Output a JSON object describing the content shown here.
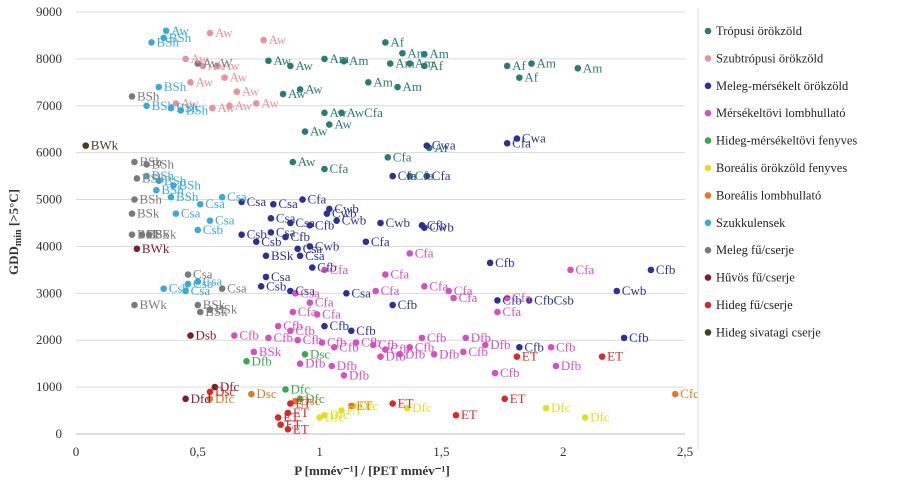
{
  "chart_data": {
    "type": "scatter",
    "xlabel": "P [mmév⁻¹] / [PET mmév⁻¹]",
    "ylabel_main": "GDD",
    "ylabel_sub": "min",
    "ylabel_rest": " [>5°C]",
    "xlim": [
      0,
      2.5
    ],
    "ylim": [
      0,
      9000
    ],
    "xticks": [
      0,
      0.5,
      1,
      1.5,
      2,
      2.5
    ],
    "xtick_labels": [
      "0",
      "0,5",
      "1",
      "1,5",
      "2",
      "2,5"
    ],
    "yticks": [
      0,
      1000,
      2000,
      3000,
      4000,
      5000,
      6000,
      7000,
      8000,
      9000
    ],
    "ytick_labels": [
      "0",
      "1000",
      "2000",
      "3000",
      "4000",
      "5000",
      "6000",
      "7000",
      "8000",
      "9000"
    ],
    "legend_position": "right",
    "series": [
      {
        "name": "Trópusi örökzöld",
        "color": "#2a7b76",
        "points": [
          [
            1.27,
            8350,
            "Af"
          ],
          [
            1.34,
            8120,
            "Am"
          ],
          [
            1.43,
            8100,
            "Am"
          ],
          [
            1.43,
            7850,
            "Af"
          ],
          [
            1.37,
            7900,
            "Am"
          ],
          [
            1.02,
            8000,
            "Am"
          ],
          [
            1.1,
            7950,
            "Am"
          ],
          [
            1.29,
            7900,
            "Am"
          ],
          [
            1.2,
            7500,
            "Am"
          ],
          [
            1.32,
            7400,
            "Am"
          ],
          [
            0.88,
            7850,
            "Aw"
          ],
          [
            0.79,
            7960,
            "Aw"
          ],
          [
            0.92,
            7350,
            "Aw"
          ],
          [
            0.85,
            7250,
            "Aw"
          ],
          [
            1.02,
            6850,
            "Aw"
          ],
          [
            1.09,
            6850,
            "AwCfa"
          ],
          [
            1.04,
            6600,
            "Aw"
          ],
          [
            0.94,
            6450,
            "Aw"
          ],
          [
            1.28,
            5900,
            "Cfa"
          ],
          [
            1.45,
            6100,
            "Af"
          ],
          [
            1.37,
            5500,
            "Cfa"
          ],
          [
            0.89,
            5800,
            "Aw"
          ],
          [
            1.02,
            5650,
            "Cfa"
          ],
          [
            1.77,
            7850,
            "Af"
          ],
          [
            1.82,
            7600,
            "Af"
          ],
          [
            1.87,
            7900,
            "Am"
          ],
          [
            2.06,
            7800,
            "Am"
          ]
        ]
      },
      {
        "name": "Szubtrópusi örökzöld",
        "color": "#e8929a",
        "points": [
          [
            0.55,
            8550,
            "Aw"
          ],
          [
            0.77,
            8400,
            "Aw"
          ],
          [
            0.45,
            8000,
            "Aw"
          ],
          [
            0.52,
            7850,
            "Aw"
          ],
          [
            0.58,
            7850,
            "Aw"
          ],
          [
            0.61,
            7600,
            "Aw"
          ],
          [
            0.66,
            7300,
            "Aw"
          ],
          [
            0.47,
            7500,
            "Aw"
          ],
          [
            0.41,
            7050,
            "Aw"
          ],
          [
            0.56,
            6950,
            "Aw"
          ],
          [
            0.63,
            7000,
            "Aw"
          ],
          [
            0.74,
            7050,
            "Aw"
          ]
        ]
      },
      {
        "name": "Meleg-mérsékelt örökzöld",
        "color": "#2b3293",
        "points": [
          [
            1.44,
            6150,
            "Cwa"
          ],
          [
            1.81,
            6300,
            "Cwa"
          ],
          [
            1.77,
            6200,
            "Cfa"
          ],
          [
            1.3,
            5500,
            "Cfa"
          ],
          [
            1.44,
            5500,
            "Cfa"
          ],
          [
            0.93,
            5000,
            "Cfa"
          ],
          [
            1.04,
            4800,
            "Cwb"
          ],
          [
            1.03,
            4700,
            "Cwb"
          ],
          [
            0.68,
            4950,
            "Csa"
          ],
          [
            0.81,
            4900,
            "Csa"
          ],
          [
            0.8,
            4600,
            "Csa"
          ],
          [
            0.88,
            4500,
            "Csa"
          ],
          [
            0.96,
            4450,
            "Cfb"
          ],
          [
            1.07,
            4550,
            "Cwb"
          ],
          [
            1.25,
            4500,
            "Cwb"
          ],
          [
            1.42,
            4450,
            "Cfb"
          ],
          [
            1.43,
            4400,
            "Cwb"
          ],
          [
            0.8,
            4300,
            "Csa"
          ],
          [
            0.74,
            4100,
            "Csb"
          ],
          [
            0.68,
            4250,
            "Csb"
          ],
          [
            0.86,
            4200,
            "Cfb"
          ],
          [
            0.96,
            4000,
            "Cwb"
          ],
          [
            0.91,
            3950,
            "Csa"
          ],
          [
            0.92,
            3800,
            "Csa"
          ],
          [
            0.97,
            3550,
            "Cfb"
          ],
          [
            1.19,
            4100,
            "Cfa"
          ],
          [
            0.78,
            3350,
            "Csa"
          ],
          [
            0.76,
            3150,
            "Csb"
          ],
          [
            0.88,
            3050,
            "Csa"
          ],
          [
            1.11,
            3000,
            "Csa"
          ],
          [
            1.3,
            2750,
            "Cfb"
          ],
          [
            1.7,
            3650,
            "Cfb"
          ],
          [
            1.73,
            2850,
            "Cfb"
          ],
          [
            1.86,
            2850,
            "CfbCsb"
          ],
          [
            2.22,
            3050,
            "Cwb"
          ],
          [
            2.36,
            3500,
            "Cfb"
          ],
          [
            2.25,
            2050,
            "Cfb"
          ],
          [
            1.82,
            1850,
            "Cfb"
          ],
          [
            1.02,
            2300,
            "Cfb"
          ],
          [
            1.13,
            2200,
            "Cfb"
          ],
          [
            0.78,
            3800,
            "BSk"
          ]
        ]
      },
      {
        "name": "Mérsékeltövi lombhullató",
        "color": "#d44fbf",
        "points": [
          [
            1.37,
            3850,
            "Cfa"
          ],
          [
            1.27,
            3400,
            "Cfa"
          ],
          [
            1.23,
            3050,
            "Cfa"
          ],
          [
            1.43,
            3150,
            "Cfa"
          ],
          [
            1.53,
            3050,
            "Cfa"
          ],
          [
            1.55,
            2900,
            "Cfa"
          ],
          [
            1.77,
            2900,
            "Cfa"
          ],
          [
            1.73,
            2600,
            "Cfa"
          ],
          [
            2.03,
            3500,
            "Cfa"
          ],
          [
            1.02,
            3500,
            "Cfa"
          ],
          [
            0.9,
            3000,
            "Csa"
          ],
          [
            0.96,
            2800,
            "Cfa"
          ],
          [
            0.89,
            2600,
            "Cfa"
          ],
          [
            0.99,
            2550,
            "Cfa"
          ],
          [
            0.83,
            2300,
            "Cfb"
          ],
          [
            0.88,
            2200,
            "Cfb"
          ],
          [
            0.65,
            2100,
            "Cfb"
          ],
          [
            0.79,
            2050,
            "Cfb"
          ],
          [
            0.91,
            2000,
            "Cfb"
          ],
          [
            1.01,
            1950,
            "Cfb"
          ],
          [
            1.06,
            1850,
            "Cfb"
          ],
          [
            1.15,
            1950,
            "Cfb"
          ],
          [
            1.22,
            1900,
            "Cfb"
          ],
          [
            1.27,
            1800,
            "Cfb"
          ],
          [
            1.37,
            1850,
            "Cfb"
          ],
          [
            1.42,
            2050,
            "Cfb"
          ],
          [
            1.6,
            2050,
            "Dfb"
          ],
          [
            1.68,
            1900,
            "Dfb"
          ],
          [
            1.59,
            1750,
            "Cfb"
          ],
          [
            1.95,
            1850,
            "Cfb"
          ],
          [
            1.97,
            1450,
            "Dfb"
          ],
          [
            1.72,
            1300,
            "Cfb"
          ],
          [
            0.92,
            1500,
            "Dfb"
          ],
          [
            1.05,
            1450,
            "Dfb"
          ],
          [
            1.1,
            1250,
            "Dfb"
          ],
          [
            1.25,
            1650,
            "Dfb"
          ],
          [
            1.33,
            1700,
            "Dfb"
          ],
          [
            1.47,
            1700,
            "Dfb"
          ],
          [
            0.73,
            1750,
            "BSk"
          ]
        ]
      },
      {
        "name": "Hideg-mérsékeltövi fenyves",
        "color": "#3aa84a",
        "points": [
          [
            0.7,
            1550,
            "Dfb"
          ],
          [
            0.94,
            1700,
            "Dsc"
          ],
          [
            0.86,
            950,
            "Dfc"
          ],
          [
            0.92,
            750,
            "Dfc"
          ]
        ]
      },
      {
        "name": "Boreális örökzöld fenyves",
        "color": "#e0e020",
        "points": [
          [
            1.14,
            600,
            "Dfc"
          ],
          [
            1.02,
            400,
            "Dfc"
          ],
          [
            1.09,
            500,
            "ET"
          ],
          [
            1.36,
            550,
            "Dfc"
          ],
          [
            1.93,
            550,
            "Dfc"
          ],
          [
            2.09,
            350,
            "Dfc"
          ],
          [
            1.0,
            350,
            "Dfc"
          ]
        ]
      },
      {
        "name": "Boreális lombhullató",
        "color": "#e07a2a",
        "points": [
          [
            0.55,
            750,
            "Dfc"
          ],
          [
            0.72,
            850,
            "Dsc"
          ],
          [
            1.13,
            600,
            "ET"
          ],
          [
            2.46,
            850,
            "Cfc"
          ],
          [
            0.9,
            700,
            "Dsc"
          ]
        ]
      },
      {
        "name": "Szukkulensek",
        "color": "#3aa8d8",
        "points": [
          [
            0.37,
            8600,
            "Aw"
          ],
          [
            0.36,
            8450,
            "BSh"
          ],
          [
            0.31,
            8350,
            "BSh"
          ],
          [
            0.34,
            7400,
            "BSh"
          ],
          [
            0.29,
            7000,
            "BSh"
          ],
          [
            0.39,
            6950,
            "BSh"
          ],
          [
            0.43,
            6900,
            "BSh"
          ],
          [
            0.29,
            5500,
            "BSh"
          ],
          [
            0.34,
            5400,
            "BSh"
          ],
          [
            0.4,
            5300,
            "BSh"
          ],
          [
            0.33,
            5200,
            "BSh"
          ],
          [
            0.39,
            5050,
            "BSh"
          ],
          [
            0.41,
            4700,
            "Csa"
          ],
          [
            0.55,
            4550,
            "Csa"
          ],
          [
            0.6,
            5050,
            "Csa"
          ],
          [
            0.51,
            4900,
            "Csa"
          ],
          [
            0.5,
            4350,
            "Csb"
          ],
          [
            0.5,
            3250,
            "Csa"
          ],
          [
            0.36,
            3100,
            "Csb"
          ],
          [
            0.45,
            3050,
            "Csa"
          ],
          [
            0.46,
            3200,
            "Csb"
          ]
        ]
      },
      {
        "name": "Meleg fű/cserje",
        "color": "#7a7a7a",
        "points": [
          [
            0.23,
            7200,
            "BSh"
          ],
          [
            0.24,
            5800,
            "BSh"
          ],
          [
            0.29,
            5750,
            "BSh"
          ],
          [
            0.25,
            5450,
            "BSh"
          ],
          [
            0.24,
            5000,
            "BSh"
          ],
          [
            0.23,
            4700,
            "BSk"
          ],
          [
            0.23,
            4250,
            "BSk"
          ],
          [
            0.27,
            4250,
            "BSk"
          ],
          [
            0.3,
            4250,
            "BSk"
          ],
          [
            0.46,
            3400,
            "Csa"
          ],
          [
            0.24,
            2750,
            "BWk"
          ],
          [
            0.5,
            2750,
            "BSk"
          ],
          [
            0.51,
            2600,
            "BSk"
          ],
          [
            0.55,
            2650,
            "BSk"
          ],
          [
            0.6,
            3100,
            "Csa"
          ],
          [
            0.5,
            7900,
            "AwW"
          ]
        ]
      },
      {
        "name": "Hűvös fű/cserje",
        "color": "#7a1e2a",
        "points": [
          [
            0.47,
            2100,
            "Dsb"
          ],
          [
            0.57,
            1000,
            "Dfc"
          ],
          [
            0.45,
            750,
            "Dfd"
          ],
          [
            0.25,
            3950,
            "BWk"
          ]
        ]
      },
      {
        "name": "Hideg fű/cserje",
        "color": "#d42a2a",
        "points": [
          [
            0.88,
            650,
            "ET"
          ],
          [
            0.87,
            450,
            "ET"
          ],
          [
            0.83,
            350,
            "ET"
          ],
          [
            0.84,
            200,
            "ET"
          ],
          [
            0.87,
            100,
            "ET"
          ],
          [
            1.3,
            650,
            "ET"
          ],
          [
            1.56,
            400,
            "ET"
          ],
          [
            1.76,
            750,
            "ET"
          ],
          [
            1.81,
            1650,
            "ET"
          ],
          [
            2.16,
            1650,
            "ET"
          ],
          [
            0.55,
            900,
            "Dsc"
          ]
        ]
      },
      {
        "name": "Hideg sivatagi cserje",
        "color": "#4a3a1e",
        "points": [
          [
            0.04,
            6150,
            "BWk"
          ]
        ]
      }
    ]
  }
}
